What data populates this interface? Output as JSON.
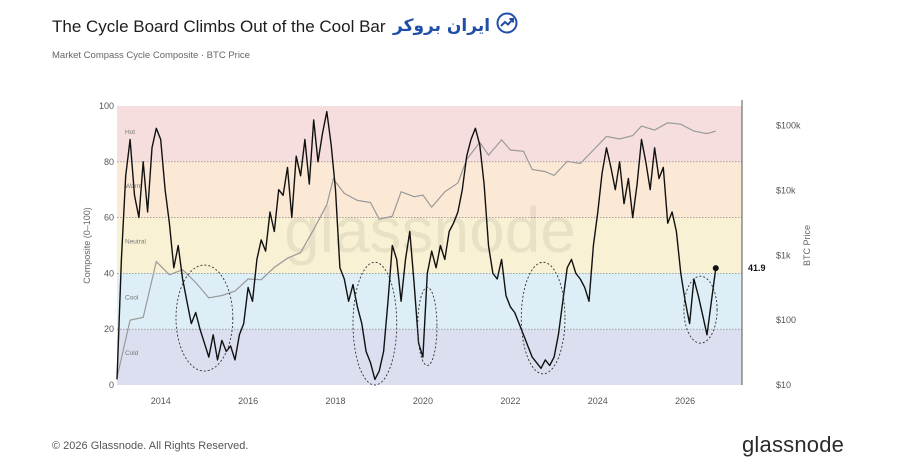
{
  "header": {
    "title": "The Cycle Board Climbs Out of the Cool Bar",
    "subtitle": "Market Compass Cycle Composite · BTC Price"
  },
  "logo": {
    "text": "ایران بروکر",
    "icon": "trend-arrow-icon"
  },
  "footer": {
    "copyright": "© 2026 Glassnode. All Rights Reserved.",
    "brand": "glassnode"
  },
  "watermark": "glassnode",
  "chart_data": {
    "type": "line",
    "title": "The Cycle Board Climbs Out of the Cool Bar",
    "subtitle": "Market Compass Cycle Composite · BTC Price",
    "ylabel": "Composite (0–100)",
    "y2label": "BTC Price",
    "xlim": [
      2013.0,
      2027.3
    ],
    "ylim": [
      0,
      100
    ],
    "x_ticks": [
      2014,
      2016,
      2018,
      2020,
      2022,
      2024,
      2026
    ],
    "y_ticks": [
      0,
      20,
      40,
      60,
      80,
      100
    ],
    "y2_scale": "log",
    "y2lim": [
      10,
      200000
    ],
    "y2_ticks": [
      {
        "value": 10,
        "label": "$10"
      },
      {
        "value": 100,
        "label": "$100"
      },
      {
        "value": 1000,
        "label": "$1k"
      },
      {
        "value": 10000,
        "label": "$10k"
      },
      {
        "value": 100000,
        "label": "$100k"
      }
    ],
    "bands": [
      {
        "name": "Hot",
        "from": 80,
        "to": 100,
        "color": "#f7dede"
      },
      {
        "name": "Warm",
        "from": 60,
        "to": 80,
        "color": "#fbe9d6"
      },
      {
        "name": "Neutral",
        "from": 40,
        "to": 60,
        "color": "#f8f1d4"
      },
      {
        "name": "Cool",
        "from": 20,
        "to": 40,
        "color": "#ddeef7"
      },
      {
        "name": "Cold",
        "from": 0,
        "to": 20,
        "color": "#dcdff0"
      }
    ],
    "grid": true,
    "series": [
      {
        "name": "",
        "axis": "left",
        "color": "#111111",
        "x": [
          2013.0,
          2013.1,
          2013.2,
          2013.3,
          2013.4,
          2013.5,
          2013.6,
          2013.7,
          2013.8,
          2013.9,
          2014.0,
          2014.1,
          2014.2,
          2014.3,
          2014.4,
          2014.5,
          2014.6,
          2014.7,
          2014.8,
          2014.9,
          2015.0,
          2015.1,
          2015.2,
          2015.3,
          2015.4,
          2015.5,
          2015.6,
          2015.7,
          2015.8,
          2015.9,
          2016.0,
          2016.1,
          2016.2,
          2016.3,
          2016.4,
          2016.5,
          2016.6,
          2016.7,
          2016.8,
          2016.9,
          2017.0,
          2017.1,
          2017.2,
          2017.3,
          2017.4,
          2017.5,
          2017.6,
          2017.7,
          2017.8,
          2017.9,
          2018.0,
          2018.1,
          2018.2,
          2018.3,
          2018.4,
          2018.5,
          2018.6,
          2018.7,
          2018.8,
          2018.9,
          2019.0,
          2019.1,
          2019.2,
          2019.3,
          2019.4,
          2019.5,
          2019.6,
          2019.7,
          2019.8,
          2019.9,
          2020.0,
          2020.1,
          2020.2,
          2020.3,
          2020.4,
          2020.5,
          2020.6,
          2020.7,
          2020.8,
          2020.9,
          2021.0,
          2021.1,
          2021.2,
          2021.3,
          2021.4,
          2021.5,
          2021.6,
          2021.7,
          2021.8,
          2021.9,
          2022.0,
          2022.1,
          2022.2,
          2022.3,
          2022.4,
          2022.5,
          2022.6,
          2022.7,
          2022.8,
          2022.9,
          2023.0,
          2023.1,
          2023.2,
          2023.3,
          2023.4,
          2023.5,
          2023.6,
          2023.7,
          2023.8,
          2023.9,
          2024.0,
          2024.1,
          2024.2,
          2024.3,
          2024.4,
          2024.5,
          2024.6,
          2024.7,
          2024.8,
          2024.9,
          2025.0,
          2025.1,
          2025.2,
          2025.3,
          2025.4,
          2025.5,
          2025.6,
          2025.7,
          2025.8,
          2025.9,
          2026.0,
          2026.1,
          2026.2,
          2026.3,
          2026.4,
          2026.5,
          2026.6,
          2026.7
        ],
        "y": [
          2,
          45,
          75,
          88,
          68,
          60,
          80,
          62,
          85,
          92,
          88,
          70,
          58,
          42,
          50,
          38,
          30,
          22,
          26,
          20,
          15,
          10,
          18,
          9,
          16,
          12,
          14,
          9,
          18,
          22,
          35,
          30,
          45,
          52,
          48,
          62,
          55,
          70,
          68,
          78,
          60,
          82,
          75,
          88,
          72,
          95,
          80,
          90,
          98,
          86,
          70,
          42,
          38,
          30,
          36,
          28,
          22,
          12,
          8,
          2,
          5,
          12,
          30,
          50,
          45,
          30,
          45,
          55,
          36,
          15,
          10,
          40,
          48,
          42,
          50,
          45,
          55,
          58,
          62,
          70,
          82,
          88,
          92,
          86,
          72,
          50,
          40,
          38,
          45,
          32,
          28,
          26,
          22,
          18,
          14,
          10,
          8,
          6,
          9,
          7,
          10,
          18,
          30,
          42,
          45,
          40,
          38,
          35,
          30,
          50,
          62,
          76,
          85,
          78,
          70,
          80,
          65,
          74,
          60,
          72,
          88,
          80,
          70,
          85,
          74,
          78,
          58,
          62,
          55,
          40,
          30,
          22,
          38,
          32,
          25,
          18,
          30,
          41.9
        ]
      },
      {
        "name": "",
        "axis": "right",
        "color": "#9a9a9a",
        "x": [
          2013.0,
          2013.3,
          2013.6,
          2013.9,
          2014.2,
          2014.5,
          2014.8,
          2015.1,
          2015.4,
          2015.7,
          2016.0,
          2016.3,
          2016.6,
          2016.9,
          2017.2,
          2017.5,
          2017.8,
          2017.95,
          2018.2,
          2018.5,
          2018.8,
          2019.0,
          2019.3,
          2019.5,
          2019.8,
          2020.0,
          2020.2,
          2020.5,
          2020.8,
          2021.0,
          2021.3,
          2021.5,
          2021.8,
          2022.0,
          2022.3,
          2022.5,
          2022.8,
          2023.0,
          2023.3,
          2023.6,
          2023.9,
          2024.2,
          2024.5,
          2024.8,
          2025.0,
          2025.3,
          2025.6,
          2025.9,
          2026.2,
          2026.5,
          2026.7
        ],
        "y": [
          13,
          100,
          110,
          800,
          500,
          600,
          380,
          220,
          240,
          280,
          430,
          420,
          650,
          900,
          1100,
          2500,
          6000,
          15000,
          9000,
          7000,
          6500,
          3600,
          4000,
          9500,
          8000,
          8500,
          5500,
          9500,
          13000,
          30000,
          55000,
          35000,
          60000,
          42000,
          40000,
          21000,
          19500,
          17000,
          28000,
          26000,
          42000,
          68000,
          62000,
          70000,
          98000,
          85000,
          110000,
          105000,
          82000,
          75000,
          82000
        ]
      }
    ],
    "last_value": 41.9,
    "last_value_label": "41.9",
    "highlight_ellipses": [
      {
        "x_center": 2015.0,
        "x_halfwidth": 0.65,
        "y_center": 24,
        "y_halfwidth": 19
      },
      {
        "x_center": 2018.9,
        "x_halfwidth": 0.5,
        "y_center": 22,
        "y_halfwidth": 22
      },
      {
        "x_center": 2020.1,
        "x_halfwidth": 0.22,
        "y_center": 21,
        "y_halfwidth": 14
      },
      {
        "x_center": 2022.75,
        "x_halfwidth": 0.5,
        "y_center": 24,
        "y_halfwidth": 20
      },
      {
        "x_center": 2026.35,
        "x_halfwidth": 0.38,
        "y_center": 27,
        "y_halfwidth": 12
      }
    ]
  }
}
